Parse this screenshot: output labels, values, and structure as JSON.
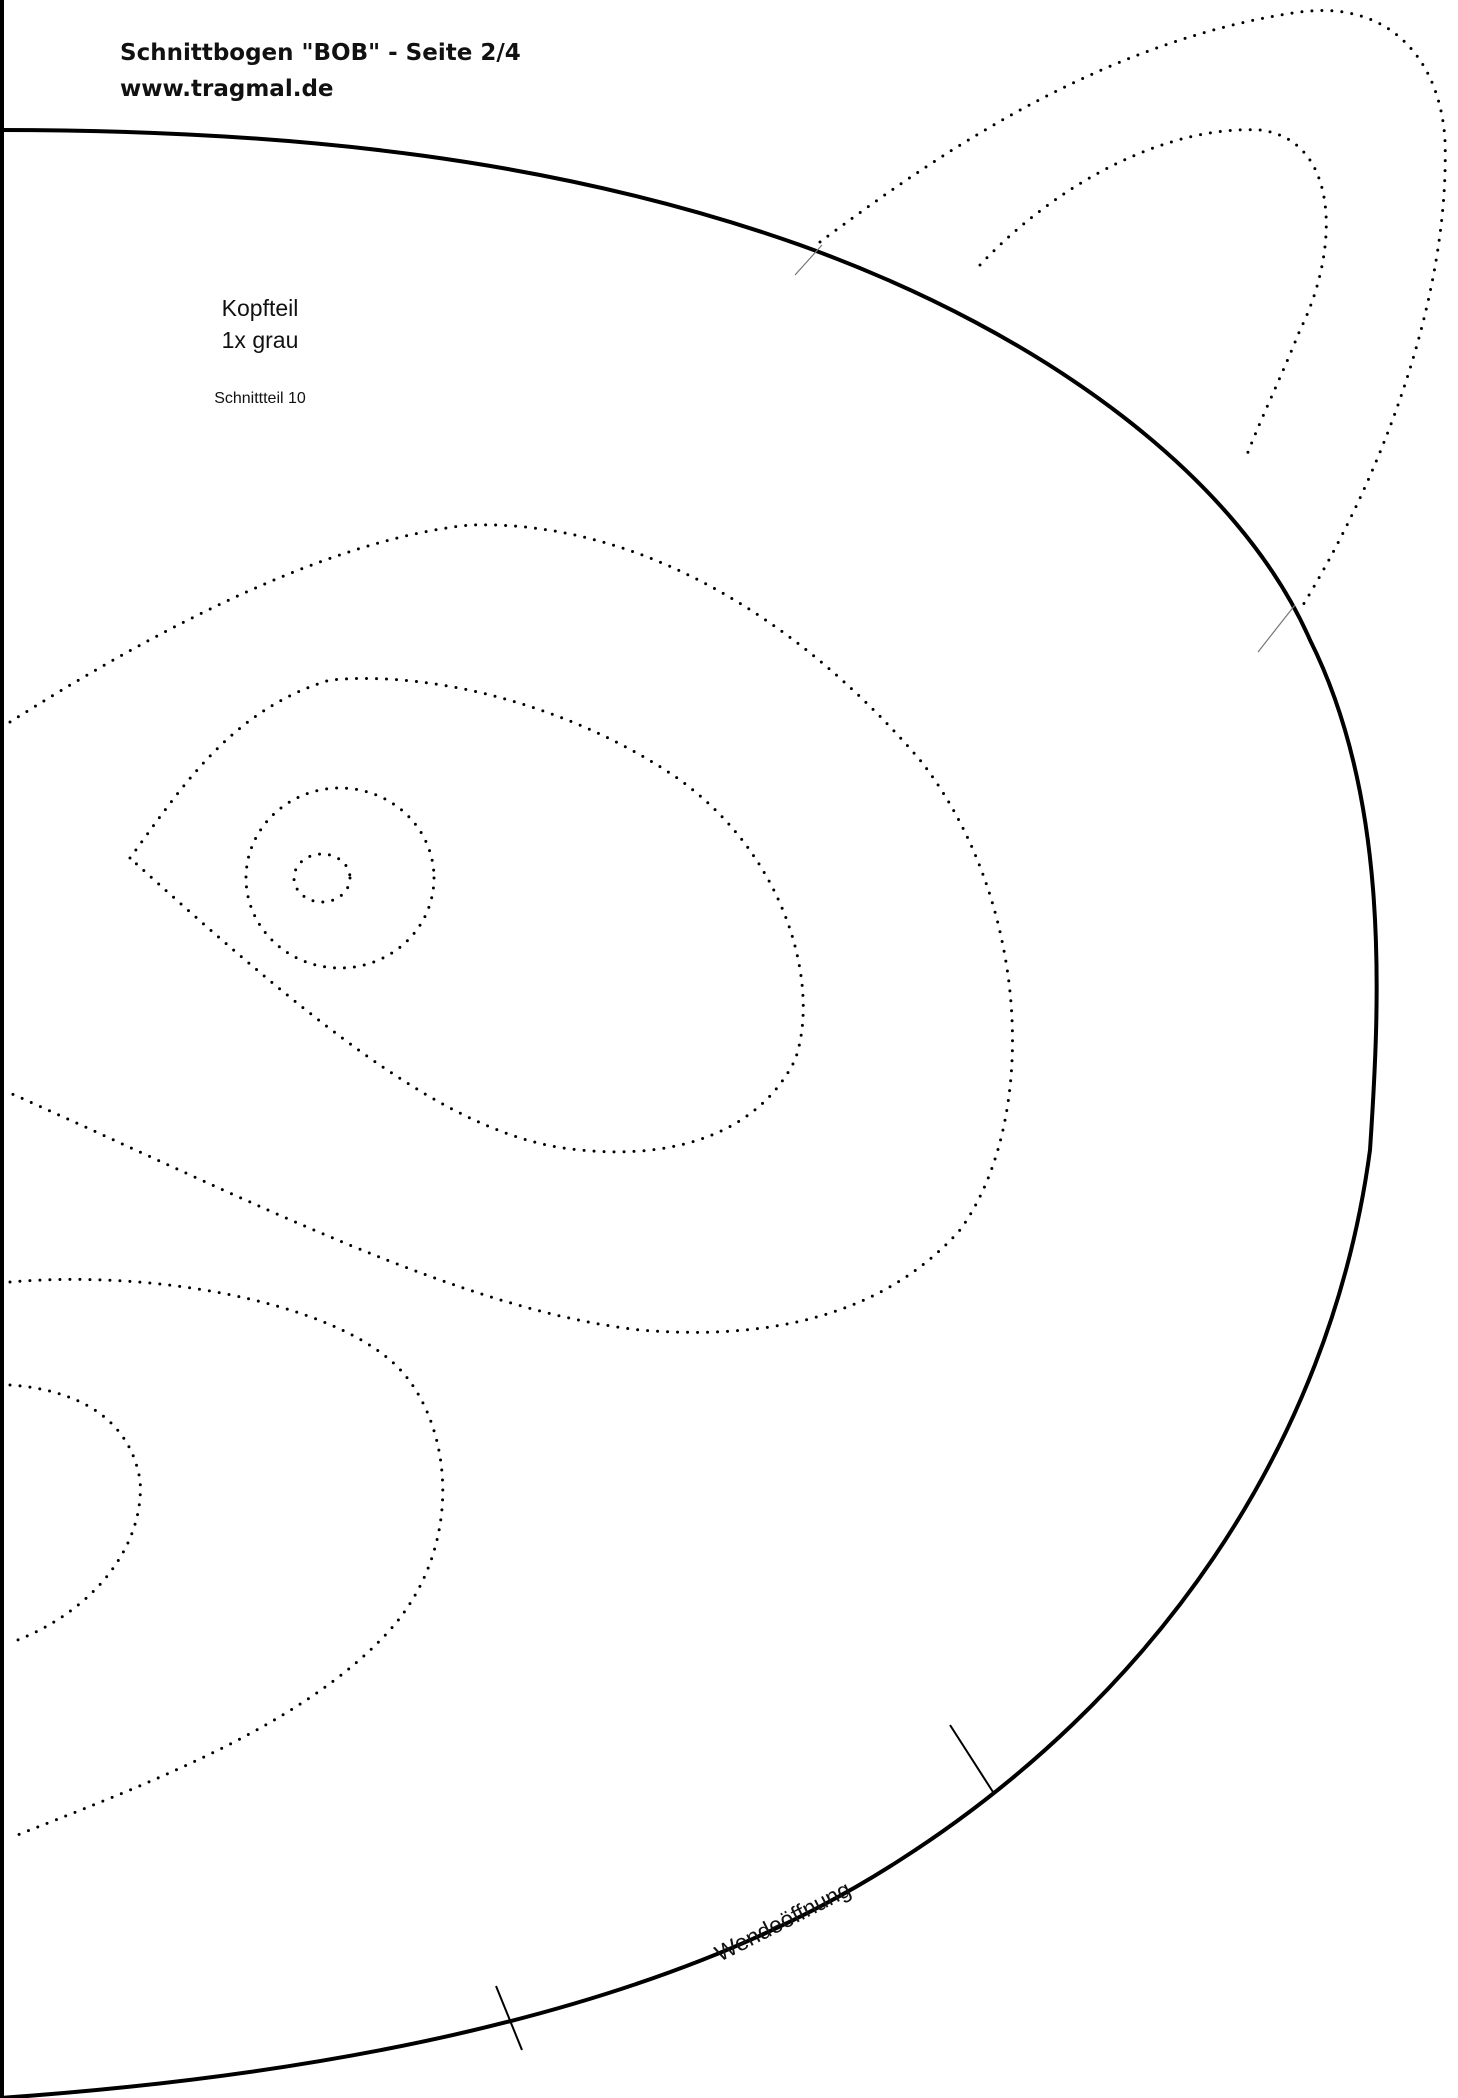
{
  "header": {
    "title": "Schnittbogen \"BOB\" - Seite 2/4",
    "url": "www.tragmal.de"
  },
  "piece": {
    "name": "Kopfteil",
    "quantity": "1x grau",
    "number": "Schnittteil 10"
  },
  "opening": {
    "label": "Wendeöffnung"
  }
}
